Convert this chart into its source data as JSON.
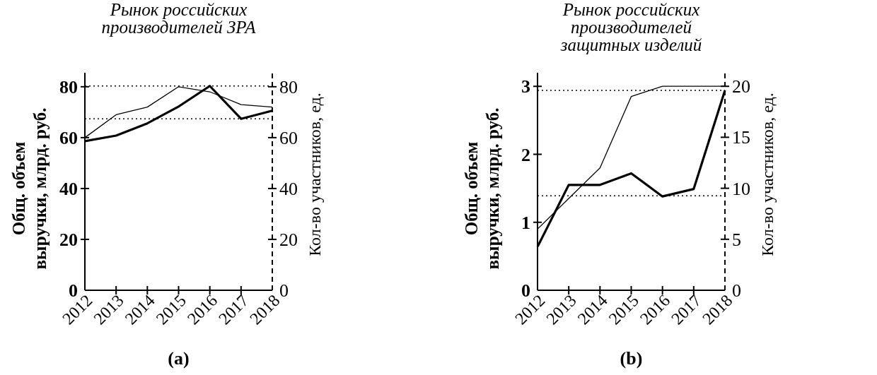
{
  "chart_data": [
    {
      "type": "line",
      "title": "Рынок российских\nпроизводителей ЗРА",
      "ylabel": "Общ. объем\nвыручки, млрд. руб.",
      "y2label": "Кол-во участников, ед.",
      "categories": [
        "2012",
        "2013",
        "2014",
        "2015",
        "2016",
        "2017",
        "2018"
      ],
      "series": [
        {
          "color": "#000000",
          "values": [
            58.6,
            60.8,
            65.6,
            72.2,
            80.3,
            67.4,
            70.6
          ]
        },
        {
          "color": "#000000",
          "axis": "y2",
          "values": [
            60,
            69,
            72,
            80,
            78,
            73,
            72
          ]
        }
      ],
      "ylim": [
        0,
        85.5
      ],
      "yticks": [
        0,
        20,
        40,
        60,
        80
      ],
      "y2lim": [
        0,
        85.5
      ],
      "y2ticks": [
        0,
        20,
        40,
        60,
        80
      ],
      "ref_lines": [
        {
          "axis": "y",
          "value": 80.3,
          "line_style": "dotted",
          "color": "#000000"
        },
        {
          "axis": "y",
          "value": 67.4,
          "line_style": "dotted",
          "color": "#000000"
        }
      ],
      "annotations": [
        "(a)"
      ],
      "grid": false
    },
    {
      "type": "line",
      "title": "Рынок российских\nпроизводителей\nзащитных изделий",
      "ylabel": "Общ. объем\nвыручки, млрд. руб.",
      "y2label": "Кол-во участников, ед.",
      "categories": [
        "2012",
        "2013",
        "2014",
        "2015",
        "2016",
        "2017",
        "2018"
      ],
      "series": [
        {
          "color": "#000000",
          "values": [
            0.64,
            1.55,
            1.55,
            1.72,
            1.38,
            1.49,
            2.94
          ]
        },
        {
          "color": "#000000",
          "axis": "y2",
          "values": [
            6,
            9,
            12,
            19,
            20,
            20,
            20
          ]
        }
      ],
      "ylim": [
        0,
        3.2
      ],
      "yticks": [
        0,
        1,
        2,
        3
      ],
      "y2lim": [
        0,
        21.33
      ],
      "y2ticks": [
        0,
        5,
        10,
        15,
        20
      ],
      "ref_lines": [
        {
          "axis": "y",
          "value": 2.94,
          "line_style": "dotted",
          "color": "#000000"
        },
        {
          "axis": "y",
          "value": 1.39,
          "line_style": "dotted",
          "color": "#000000"
        }
      ],
      "annotations": [
        "(b)"
      ],
      "grid": false
    }
  ]
}
